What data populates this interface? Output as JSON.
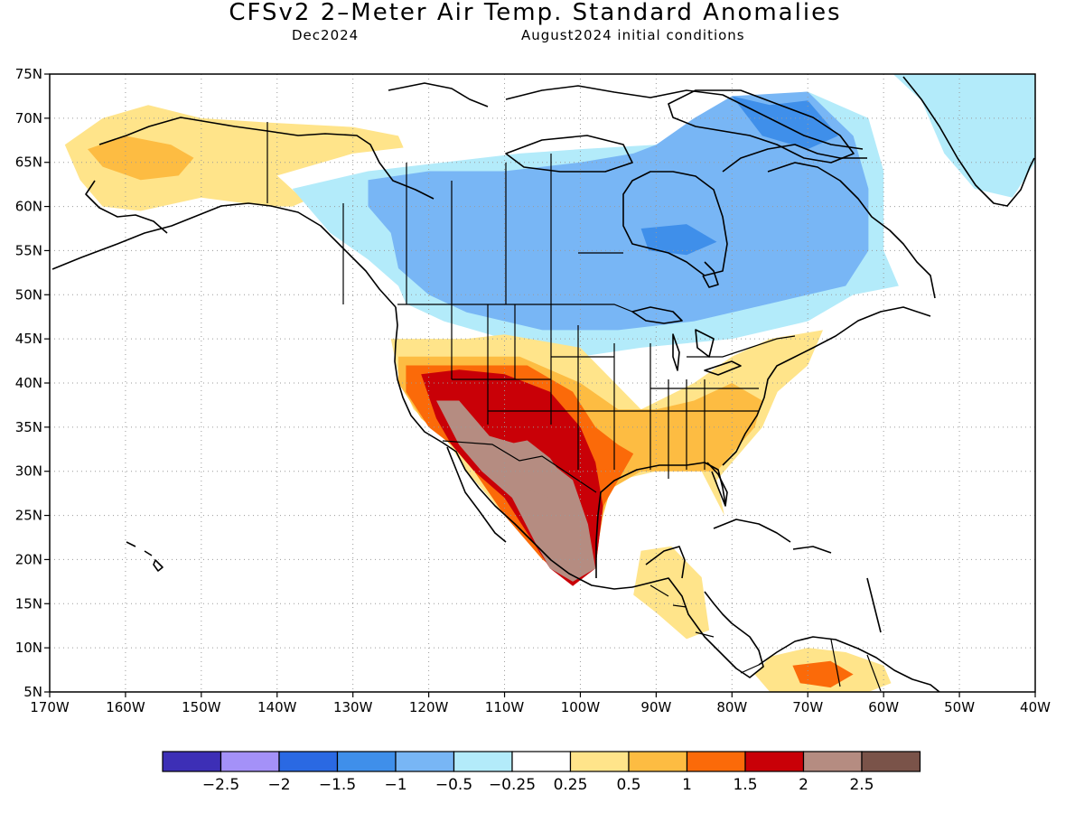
{
  "title": "CFSv2 2–Meter Air Temp. Standard Anomalies",
  "subtitle_left": "Dec2024",
  "subtitle_right": "August2024 initial conditions",
  "lat_labels": [
    "75N",
    "70N",
    "65N",
    "60N",
    "55N",
    "50N",
    "45N",
    "40N",
    "35N",
    "30N",
    "25N",
    "20N",
    "15N",
    "10N",
    "5N"
  ],
  "lon_labels": [
    "170W",
    "160W",
    "150W",
    "140W",
    "130W",
    "120W",
    "110W",
    "100W",
    "90W",
    "80W",
    "70W",
    "60W",
    "50W",
    "40W"
  ],
  "colorbar": {
    "colors": [
      "#3d2fb6",
      "#a491f8",
      "#2a69e3",
      "#3f8fea",
      "#78b6f5",
      "#b3ebfa",
      "#ffffff",
      "#ffe48a",
      "#fdbc42",
      "#fb6a09",
      "#c90007",
      "#b58c81",
      "#7a5349"
    ],
    "labels": [
      "−2.5",
      "−2",
      "−1.5",
      "−1",
      "−0.5",
      "−0.25",
      "0.25",
      "0.5",
      "1",
      "1.5",
      "2",
      "2.5"
    ]
  },
  "chart_data": {
    "type": "heatmap",
    "title": "CFSv2 2–Meter Air Temp. Standard Anomalies",
    "xlim": [
      -170,
      -40
    ],
    "ylim": [
      5,
      75
    ],
    "x_ticks": [
      -170,
      -160,
      -150,
      -140,
      -130,
      -120,
      -110,
      -100,
      -90,
      -80,
      -70,
      -60,
      -50,
      -40
    ],
    "y_ticks": [
      5,
      10,
      15,
      20,
      25,
      30,
      35,
      40,
      45,
      50,
      55,
      60,
      65,
      70,
      75
    ],
    "grid": true,
    "color_levels": [
      -2.5,
      -2,
      -1.5,
      -1,
      -0.5,
      -0.25,
      0.25,
      0.5,
      1,
      1.5,
      2,
      2.5
    ],
    "regions": [
      {
        "level": 0.5,
        "points": [
          [
            -168,
            67
          ],
          [
            -163,
            70
          ],
          [
            -157,
            71.5
          ],
          [
            -150,
            70
          ],
          [
            -141,
            69.5
          ],
          [
            -130,
            69
          ],
          [
            -124,
            68
          ],
          [
            -123,
            66
          ],
          [
            -130,
            63
          ],
          [
            -138,
            60
          ],
          [
            -141,
            60
          ],
          [
            -150,
            61
          ],
          [
            -158,
            59.5
          ],
          [
            -163,
            60
          ],
          [
            -166,
            63
          ]
        ]
      },
      {
        "level": 1,
        "points": [
          [
            -165,
            66.5
          ],
          [
            -160,
            68
          ],
          [
            -154,
            67
          ],
          [
            -151,
            65.5
          ],
          [
            -153,
            63.5
          ],
          [
            -158,
            63
          ],
          [
            -163,
            64.5
          ]
        ]
      },
      {
        "level": -0.25,
        "points": [
          [
            -140,
            63.5
          ],
          [
            -130,
            66
          ],
          [
            -120,
            67
          ],
          [
            -110,
            66
          ],
          [
            -100,
            65
          ],
          [
            -90,
            63
          ],
          [
            -80,
            61
          ],
          [
            -95,
            60
          ],
          [
            -110,
            60
          ],
          [
            -125,
            56
          ],
          [
            -130,
            54
          ],
          [
            -133,
            58
          ]
        ]
      },
      {
        "level": -0.5,
        "points": [
          [
            -138,
            62
          ],
          [
            -128,
            64
          ],
          [
            -118,
            65
          ],
          [
            -108,
            66
          ],
          [
            -100,
            66.5
          ],
          [
            -90,
            67
          ],
          [
            -80,
            72
          ],
          [
            -70,
            73
          ],
          [
            -62,
            70
          ],
          [
            -60,
            64
          ],
          [
            -60,
            55
          ],
          [
            -58,
            51
          ],
          [
            -64,
            50
          ],
          [
            -70,
            47
          ],
          [
            -80,
            45
          ],
          [
            -92,
            44
          ],
          [
            -100,
            43
          ],
          [
            -105,
            44
          ],
          [
            -110,
            45
          ],
          [
            -118,
            47
          ],
          [
            -123,
            49
          ],
          [
            -124,
            51
          ],
          [
            -128,
            54
          ],
          [
            -133,
            57
          ]
        ]
      },
      {
        "level": -1,
        "points": [
          [
            -128,
            63
          ],
          [
            -120,
            64
          ],
          [
            -110,
            64
          ],
          [
            -100,
            65
          ],
          [
            -93,
            66
          ],
          [
            -90,
            67
          ],
          [
            -85,
            70
          ],
          [
            -80,
            72.5
          ],
          [
            -70,
            73
          ],
          [
            -64,
            68
          ],
          [
            -62,
            62
          ],
          [
            -62,
            55
          ],
          [
            -65,
            51
          ],
          [
            -75,
            49
          ],
          [
            -85,
            47
          ],
          [
            -95,
            46
          ],
          [
            -105,
            46
          ],
          [
            -115,
            48
          ],
          [
            -120,
            50
          ],
          [
            -124,
            53
          ],
          [
            -125,
            57
          ],
          [
            -128,
            60
          ]
        ]
      },
      {
        "level": -1.5,
        "points": [
          [
            -80,
            72.5
          ],
          [
            -75,
            71.5
          ],
          [
            -70,
            72
          ],
          [
            -66,
            68
          ],
          [
            -70,
            66.5
          ],
          [
            -76,
            68
          ]
        ]
      },
      {
        "level": -1.5,
        "points": [
          [
            -92,
            57.5
          ],
          [
            -86,
            58
          ],
          [
            -82,
            56
          ],
          [
            -86,
            54.5
          ],
          [
            -91,
            55
          ]
        ]
      },
      {
        "level": -0.5,
        "points": [
          [
            -64,
            79
          ],
          [
            -55,
            80
          ],
          [
            -45,
            79.5
          ],
          [
            -40,
            78
          ],
          [
            -40,
            65
          ],
          [
            -43,
            61
          ],
          [
            -48,
            62
          ],
          [
            -52,
            66
          ],
          [
            -55,
            72
          ],
          [
            -60,
            76
          ]
        ]
      },
      {
        "level": 0.5,
        "points": [
          [
            -125,
            45
          ],
          [
            -115,
            45
          ],
          [
            -110,
            45.5
          ],
          [
            -100,
            44
          ],
          [
            -92,
            37
          ],
          [
            -85,
            40
          ],
          [
            -80,
            43
          ],
          [
            -75,
            45
          ],
          [
            -68,
            46
          ],
          [
            -70,
            42
          ],
          [
            -74,
            39
          ],
          [
            -76,
            35
          ],
          [
            -80,
            31
          ],
          [
            -82,
            29
          ],
          [
            -81,
            25
          ],
          [
            -84,
            30
          ],
          [
            -90,
            30
          ],
          [
            -95,
            29
          ],
          [
            -97,
            26
          ],
          [
            -98,
            20
          ],
          [
            -105,
            20
          ],
          [
            -115,
            30
          ],
          [
            -118,
            34
          ],
          [
            -122,
            37
          ],
          [
            -124,
            41
          ]
        ]
      },
      {
        "level": 1,
        "points": [
          [
            -124,
            43
          ],
          [
            -115,
            43
          ],
          [
            -108,
            43
          ],
          [
            -100,
            40
          ],
          [
            -95,
            37
          ],
          [
            -90,
            37
          ],
          [
            -85,
            38
          ],
          [
            -80,
            40
          ],
          [
            -76,
            38
          ],
          [
            -77,
            35
          ],
          [
            -80,
            32
          ],
          [
            -82,
            30
          ],
          [
            -86,
            30
          ],
          [
            -92,
            30
          ],
          [
            -96,
            28
          ],
          [
            -97,
            25
          ],
          [
            -98,
            20
          ],
          [
            -105,
            20
          ],
          [
            -112,
            29
          ],
          [
            -117,
            33
          ],
          [
            -121,
            36
          ],
          [
            -124,
            40
          ]
        ]
      },
      {
        "level": 1.5,
        "points": [
          [
            -123,
            42
          ],
          [
            -115,
            42
          ],
          [
            -107,
            42
          ],
          [
            -101,
            39
          ],
          [
            -98,
            35
          ],
          [
            -95,
            33
          ],
          [
            -93,
            32
          ],
          [
            -95,
            29
          ],
          [
            -97,
            26
          ],
          [
            -98,
            19
          ],
          [
            -102,
            18
          ],
          [
            -105,
            20
          ],
          [
            -110,
            25
          ],
          [
            -114,
            30
          ],
          [
            -117,
            33
          ],
          [
            -120,
            35
          ],
          [
            -123,
            39
          ]
        ]
      },
      {
        "level": 2,
        "points": [
          [
            -121,
            41
          ],
          [
            -116,
            41.5
          ],
          [
            -110,
            41
          ],
          [
            -104,
            39
          ],
          [
            -100,
            35
          ],
          [
            -98,
            31
          ],
          [
            -97,
            26
          ],
          [
            -98,
            19
          ],
          [
            -101,
            17
          ],
          [
            -104,
            19
          ],
          [
            -107,
            23
          ],
          [
            -110,
            27
          ],
          [
            -114,
            30
          ],
          [
            -117,
            33
          ],
          [
            -119,
            36
          ]
        ]
      },
      {
        "level": 2.5,
        "points": [
          [
            -119,
            38
          ],
          [
            -116,
            38
          ],
          [
            -112,
            34
          ],
          [
            -108,
            33
          ],
          [
            -104,
            31
          ],
          [
            -101,
            29
          ],
          [
            -99,
            24
          ],
          [
            -98,
            19
          ],
          [
            -101,
            17.5
          ],
          [
            -104,
            19
          ],
          [
            -106,
            22
          ],
          [
            -109,
            27
          ],
          [
            -113,
            30
          ],
          [
            -116,
            33
          ]
        ]
      },
      {
        "level": 2.5,
        "points": [
          [
            -110,
            33
          ],
          [
            -107,
            33.5
          ],
          [
            -104,
            31.5
          ],
          [
            -102,
            29
          ],
          [
            -104,
            27
          ],
          [
            -107,
            28
          ],
          [
            -109,
            30
          ]
        ]
      },
      {
        "level": 0.5,
        "points": [
          [
            -92,
            21
          ],
          [
            -88,
            21.5
          ],
          [
            -84,
            18
          ],
          [
            -83,
            12
          ],
          [
            -86,
            11
          ],
          [
            -90,
            14
          ],
          [
            -93,
            16
          ]
        ]
      },
      {
        "level": 0.5,
        "points": [
          [
            -75,
            9
          ],
          [
            -70,
            10
          ],
          [
            -65,
            9.5
          ],
          [
            -60,
            8
          ],
          [
            -59,
            6
          ],
          [
            -62,
            5
          ],
          [
            -75,
            5
          ],
          [
            -77,
            7
          ]
        ]
      },
      {
        "level": 1.5,
        "points": [
          [
            -72,
            8
          ],
          [
            -67,
            8.5
          ],
          [
            -64,
            7
          ],
          [
            -67,
            5.5
          ],
          [
            -71,
            6
          ]
        ]
      }
    ]
  }
}
